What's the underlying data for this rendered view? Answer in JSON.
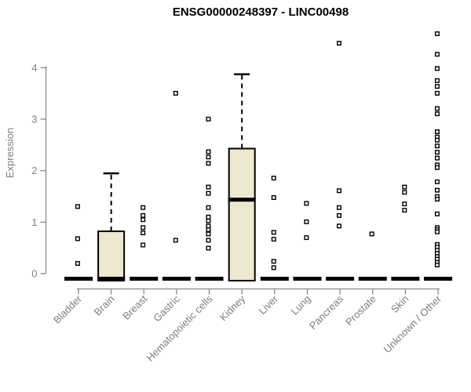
{
  "title": "ENSG00000248397 - LINC00498",
  "chart_data": {
    "type": "boxplot",
    "title": "ENSG00000248397 - LINC00498",
    "ylabel": "Expression",
    "xlabel": "",
    "yticks": [
      0,
      1,
      2,
      3,
      4
    ],
    "ylim": [
      0,
      4.8
    ],
    "grid": false,
    "legend": null,
    "categories": [
      "Bladder",
      "Brain",
      "Breast",
      "Gastric",
      "Hematopoietic cells",
      "Kidney",
      "Liver",
      "Lung",
      "Pancreas",
      "Prostate",
      "Skin",
      "Unknown / Other"
    ],
    "series": [
      {
        "name": "Bladder",
        "q1": 0,
        "median": 0,
        "q3": 0,
        "whisker_high": null,
        "outliers": [
          1.37,
          0.76,
          0.29
        ]
      },
      {
        "name": "Brain",
        "q1": 0,
        "median": 0,
        "q3": 0.9,
        "whisker_high": 2.0,
        "outliers": []
      },
      {
        "name": "Breast",
        "q1": 0,
        "median": 0,
        "q3": 0,
        "whisker_high": null,
        "outliers": [
          1.35,
          1.2,
          1.12,
          0.97,
          0.87,
          0.64
        ]
      },
      {
        "name": "Gastric",
        "q1": 0,
        "median": 0,
        "q3": 0,
        "whisker_high": null,
        "outliers": [
          3.52,
          0.73
        ]
      },
      {
        "name": "Hematopoietic cells",
        "q1": 0,
        "median": 0,
        "q3": 0,
        "whisker_high": null,
        "outliers": [
          3.03,
          2.41,
          2.31,
          2.19,
          1.74,
          1.62,
          1.35,
          1.17,
          1.1,
          1.0,
          0.93,
          0.85,
          0.73,
          0.58
        ]
      },
      {
        "name": "Kidney",
        "q1": 0,
        "median": 1.5,
        "q3": 2.47,
        "whisker_high": 3.88,
        "outliers": []
      },
      {
        "name": "Liver",
        "q1": 0,
        "median": 0,
        "q3": 0,
        "whisker_high": null,
        "outliers": [
          1.91,
          1.54,
          0.88,
          0.75,
          0.33,
          0.21
        ]
      },
      {
        "name": "Lung",
        "q1": 0,
        "median": 0,
        "q3": 0,
        "whisker_high": null,
        "outliers": [
          1.43,
          1.08,
          0.78
        ]
      },
      {
        "name": "Pancreas",
        "q1": 0,
        "median": 0,
        "q3": 0,
        "whisker_high": null,
        "outliers": [
          4.47,
          1.67,
          1.35,
          1.2,
          1.0
        ]
      },
      {
        "name": "Prostate",
        "q1": 0,
        "median": 0,
        "q3": 0,
        "whisker_high": null,
        "outliers": [
          0.85
        ]
      },
      {
        "name": "Skin",
        "q1": 0,
        "median": 0,
        "q3": 0,
        "whisker_high": null,
        "outliers": [
          1.74,
          1.64,
          1.42,
          1.3
        ]
      },
      {
        "name": "Unknown / Other",
        "q1": 0,
        "median": 0,
        "q3": 0,
        "whisker_high": null,
        "outliers": [
          4.65,
          4.26,
          3.99,
          3.76,
          3.65,
          3.52,
          3.23,
          3.13,
          2.79,
          2.69,
          2.63,
          2.52,
          2.4,
          2.29,
          2.16,
          2.11,
          1.84,
          1.68,
          1.56,
          1.51,
          1.23,
          0.97,
          0.93,
          0.89,
          0.65,
          0.6,
          0.54,
          0.48,
          0.42,
          0.37,
          0.31,
          0.26
        ]
      }
    ],
    "colors": {
      "box_fill": "#EDE8D0",
      "box_stroke": "#000000",
      "median": "#000000",
      "axis_line": "#8a8a8a",
      "tick_label": "#7f7f7f",
      "title": "#000000",
      "point_stroke": "#000000",
      "point_fill": "#ffffff",
      "background": "#ffffff"
    }
  }
}
